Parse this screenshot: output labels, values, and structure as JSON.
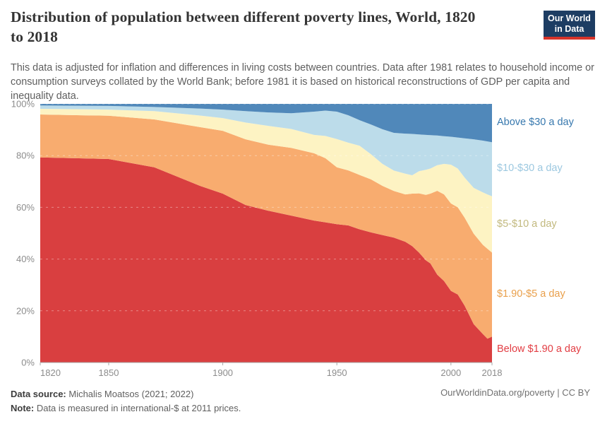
{
  "header": {
    "title_lines": [
      "Distribution of population between different poverty lines, World, 1820",
      "to 2018"
    ],
    "subtitle": "This data is adjusted for inflation and differences in living costs between countries. Data after 1981 relates to household income or consumption surveys collated by the World Bank; before 1981 it is based on historical reconstructions of GDP per capita and inequality data.",
    "logo": {
      "line1": "Our World",
      "line2": "in Data",
      "bg_color": "#1d3d63",
      "accent_color": "#d7332a"
    }
  },
  "chart_data": {
    "type": "area",
    "stacked": true,
    "unit": "% of population",
    "xlim": [
      1820,
      2018
    ],
    "ylim": [
      0,
      100
    ],
    "grid": "dashed horizontal",
    "legend_position": "right",
    "x": [
      1820,
      1850,
      1870,
      1890,
      1900,
      1910,
      1920,
      1930,
      1940,
      1945,
      1950,
      1955,
      1960,
      1965,
      1970,
      1975,
      1980,
      1983,
      1986,
      1989,
      1991,
      1994,
      1997,
      2000,
      2003,
      2006,
      2010,
      2014,
      2016,
      2018
    ],
    "series": [
      {
        "id": "below-190",
        "name": "Below $1.90 a day",
        "color": "#d93f40",
        "label_color": "#e23d43",
        "cum_top_pct": [
          79.3,
          78.7,
          75.5,
          68.3,
          65.3,
          60.9,
          58.7,
          56.8,
          54.9,
          54.2,
          53.5,
          53.0,
          51.5,
          50.3,
          49.3,
          48.3,
          46.7,
          45.0,
          42.5,
          39.5,
          38.3,
          34.0,
          31.5,
          27.7,
          26.3,
          22.0,
          14.8,
          11.0,
          9.2,
          10.0
        ]
      },
      {
        "id": "190-5",
        "name": "$1.90-$5 a day",
        "color": "#f8ac6f",
        "label_color": "#e9a04c",
        "cum_top_pct": [
          95.9,
          95.4,
          94.0,
          91.0,
          89.6,
          86.3,
          84.2,
          83.0,
          80.9,
          79.0,
          75.5,
          74.3,
          72.5,
          70.8,
          68.3,
          66.3,
          65.0,
          65.3,
          65.4,
          64.8,
          65.3,
          66.4,
          65.0,
          61.5,
          60.0,
          56.0,
          49.8,
          45.5,
          44.0,
          42.5
        ]
      },
      {
        "id": "5-10",
        "name": "$5-$10 a day",
        "color": "#fdf3c3",
        "label_color": "#c2b97e",
        "cum_top_pct": [
          98.1,
          97.8,
          97.2,
          95.5,
          94.5,
          92.8,
          91.5,
          90.3,
          88.0,
          87.6,
          86.4,
          85.0,
          83.8,
          80.5,
          76.8,
          74.2,
          73.0,
          72.4,
          74.0,
          74.5,
          75.0,
          76.3,
          76.8,
          76.5,
          75.0,
          71.5,
          67.5,
          65.8,
          65.0,
          64.3
        ]
      },
      {
        "id": "10-30",
        "name": "$10-$30 a day",
        "color": "#bcdcea",
        "label_color": "#9cc8e0",
        "cum_top_pct": [
          99.4,
          99.2,
          98.8,
          98.2,
          97.8,
          97.2,
          96.7,
          96.4,
          97.0,
          97.4,
          97.0,
          95.6,
          93.7,
          92.0,
          90.2,
          88.8,
          88.5,
          88.4,
          88.2,
          88.0,
          87.9,
          87.8,
          87.5,
          87.3,
          87.0,
          86.7,
          86.3,
          85.8,
          85.5,
          85.2
        ]
      },
      {
        "id": "above-30",
        "name": "Above $30 a day",
        "color": "#5088ba",
        "label_color": "#3778ae",
        "cum_top_pct": [
          100,
          100,
          100,
          100,
          100,
          100,
          100,
          100,
          100,
          100,
          100,
          100,
          100,
          100,
          100,
          100,
          100,
          100,
          100,
          100,
          100,
          100,
          100,
          100,
          100,
          100,
          100,
          100,
          100,
          100
        ]
      }
    ],
    "y_axis": {
      "ticks": [
        0,
        20,
        40,
        60,
        80,
        100
      ],
      "tick_suffix": "%"
    },
    "x_axis": {
      "ticks": [
        1820,
        1850,
        1900,
        1950,
        2000,
        2018
      ]
    }
  },
  "footer": {
    "source_label": "Data source:",
    "source_text": " Michalis Moatsos (2021; 2022)",
    "note_label": "Note:",
    "note_text": " Data is measured in international-$ at 2011 prices.",
    "credit": "OurWorldinData.org/poverty | CC BY"
  }
}
